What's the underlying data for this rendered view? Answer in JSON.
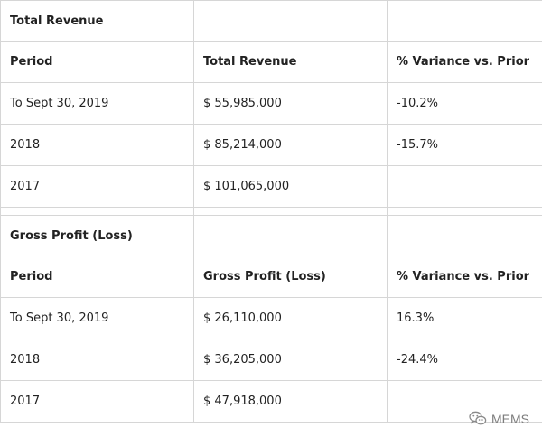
{
  "revenue": {
    "section_title": "Total Revenue",
    "headers": [
      "Period",
      "Total Revenue",
      "% Variance vs. Prior"
    ],
    "rows": [
      [
        "To Sept 30, 2019",
        "$ 55,985,000",
        "-10.2%"
      ],
      [
        "2018",
        "$ 85,214,000",
        "-15.7%"
      ],
      [
        "2017",
        "$ 101,065,000",
        ""
      ]
    ]
  },
  "gross_profit": {
    "section_title": "Gross Profit (Loss)",
    "headers": [
      "Period",
      "Gross Profit (Loss)",
      "% Variance vs. Prior"
    ],
    "rows": [
      [
        "To Sept 30, 2019",
        "$ 26,110,000",
        "16.3%"
      ],
      [
        "2018",
        "$ 36,205,000",
        "-24.4%"
      ],
      [
        "2017",
        "$ 47,918,000",
        ""
      ]
    ]
  },
  "watermark": {
    "icon": "wechat-icon",
    "label": "MEMS"
  }
}
